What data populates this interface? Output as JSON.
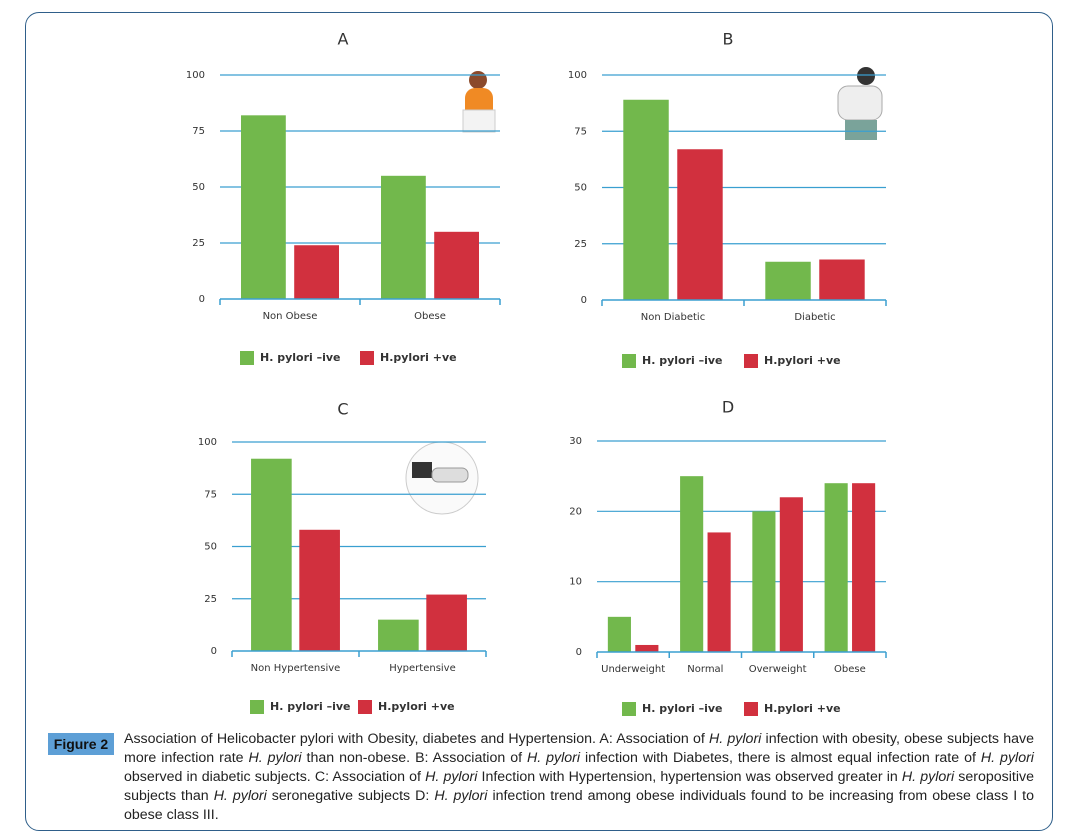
{
  "chart_data": [
    {
      "type": "bar",
      "title": "A",
      "categories": [
        "Non Obese",
        "Obese"
      ],
      "series": [
        {
          "name": "H. pylori –ive",
          "color": "#72b84c",
          "values": [
            82,
            55
          ]
        },
        {
          "name": "H.pylori +ve",
          "color": "#d1303e",
          "values": [
            24,
            30
          ]
        }
      ],
      "ylim": [
        0,
        100
      ],
      "yticks": [
        0,
        25,
        50,
        75,
        100
      ],
      "grid": true
    },
    {
      "type": "bar",
      "title": "B",
      "categories": [
        "Non Diabetic",
        "Diabetic"
      ],
      "series": [
        {
          "name": "H. pylori –ive",
          "color": "#72b84c",
          "values": [
            89,
            17
          ]
        },
        {
          "name": "H.pylori +ve",
          "color": "#d1303e",
          "values": [
            67,
            18
          ]
        }
      ],
      "ylim": [
        0,
        100
      ],
      "yticks": [
        0,
        25,
        50,
        75,
        100
      ],
      "grid": true
    },
    {
      "type": "bar",
      "title": "C",
      "categories": [
        "Non Hypertensive",
        "Hypertensive"
      ],
      "series": [
        {
          "name": "H. pylori –ive",
          "color": "#72b84c",
          "values": [
            92,
            15
          ]
        },
        {
          "name": "H.pylori +ve",
          "color": "#d1303e",
          "values": [
            58,
            27
          ]
        }
      ],
      "ylim": [
        0,
        100
      ],
      "yticks": [
        0,
        25,
        50,
        75,
        100
      ],
      "grid": true
    },
    {
      "type": "bar",
      "title": "D",
      "categories": [
        "Underweight",
        "Normal",
        "Overweight",
        "Obese"
      ],
      "series": [
        {
          "name": "H. pylori –ive",
          "color": "#72b84c",
          "values": [
            5,
            25,
            20,
            24
          ]
        },
        {
          "name": "H.pylori +ve",
          "color": "#d1303e",
          "values": [
            1,
            17,
            22,
            24
          ]
        }
      ],
      "ylim": [
        0,
        30
      ],
      "yticks": [
        0,
        10,
        20,
        30
      ],
      "grid": true
    }
  ],
  "caption": {
    "label": "Figure 2",
    "runs": [
      {
        "text": "Association of Helicobacter pylori with Obesity, diabetes and Hypertension. A: Association of "
      },
      {
        "text": "H. pylori",
        "italic": true
      },
      {
        "text": " infection with obesity, obese subjects have more infection rate "
      },
      {
        "text": "H. pylori",
        "italic": true
      },
      {
        "text": " than non-obese. B: Association of "
      },
      {
        "text": "H. pylori",
        "italic": true
      },
      {
        "text": " infection with Diabetes, there is almost equal infection rate of "
      },
      {
        "text": "H. pylori",
        "italic": true
      },
      {
        "text": " observed in diabetic subjects. C: Association of "
      },
      {
        "text": "H. pylori",
        "italic": true
      },
      {
        "text": " Infection with Hypertension, hypertension was observed greater in "
      },
      {
        "text": "H. pylori",
        "italic": true
      },
      {
        "text": " seropositive subjects than "
      },
      {
        "text": "H. pylori",
        "italic": true
      },
      {
        "text": " seronegative subjects D: "
      },
      {
        "text": "H. pylori",
        "italic": true
      },
      {
        "text": " infection trend among obese individuals found to be increasing from obese class I to obese class III."
      }
    ]
  }
}
